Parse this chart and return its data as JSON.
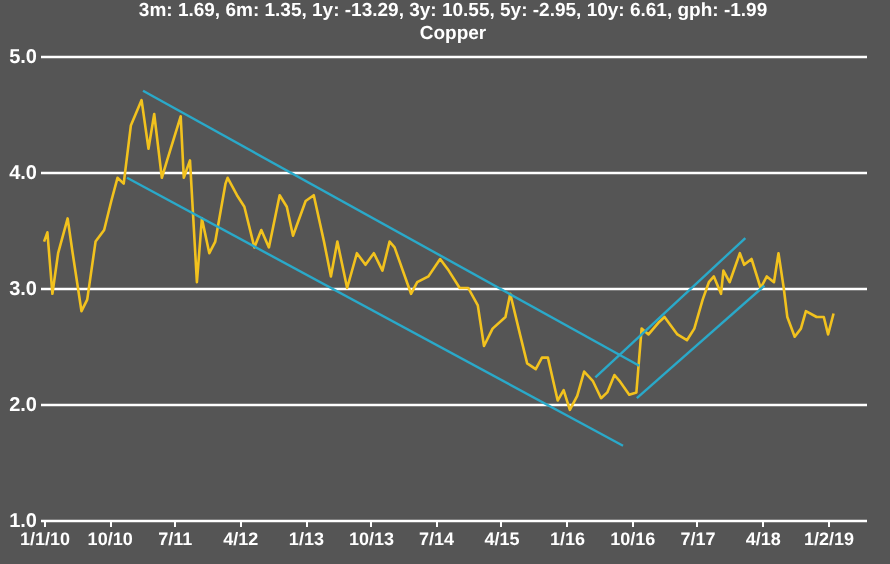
{
  "chart_data": {
    "type": "line",
    "title": "Copper",
    "annotations": [
      "3m: 1.69, 6m: 1.35, 1y: -13.29, 3y: 10.55, 5y: -2.95, 10y: 6.61, gph: -1.99"
    ],
    "x": [
      "2010-01-01",
      "2010-01-15",
      "2010-02-05",
      "2010-03-01",
      "2010-04-10",
      "2010-05-01",
      "2010-06-07",
      "2010-07-01",
      "2010-08-05",
      "2010-09-10",
      "2010-10-10",
      "2010-11-05",
      "2010-12-01",
      "2010-12-31",
      "2011-02-14",
      "2011-03-15",
      "2011-04-08",
      "2011-05-10",
      "2011-06-01",
      "2011-07-28",
      "2011-08-10",
      "2011-09-05",
      "2011-10-04",
      "2011-10-25",
      "2011-11-25",
      "2011-12-20",
      "2012-02-01",
      "2012-02-10",
      "2012-03-20",
      "2012-04-20",
      "2012-06-01",
      "2012-06-30",
      "2012-08-01",
      "2012-09-15",
      "2012-10-15",
      "2012-11-10",
      "2013-01-02",
      "2013-02-05",
      "2013-03-20",
      "2013-04-18",
      "2013-05-15",
      "2013-06-25",
      "2013-08-05",
      "2013-09-10",
      "2013-10-15",
      "2013-11-20",
      "2013-12-20",
      "2014-01-10",
      "2014-03-20",
      "2014-04-15",
      "2014-06-01",
      "2014-07-20",
      "2014-08-25",
      "2014-10-10",
      "2014-11-15",
      "2014-12-25",
      "2015-01-20",
      "2015-02-25",
      "2015-04-20",
      "2015-05-10",
      "2015-06-20",
      "2015-07-20",
      "2015-08-25",
      "2015-09-20",
      "2015-10-15",
      "2015-11-25",
      "2015-12-20",
      "2016-01-15",
      "2016-02-15",
      "2016-03-15",
      "2016-04-20",
      "2016-05-25",
      "2016-06-20",
      "2016-07-20",
      "2016-08-10",
      "2016-09-20",
      "2016-10-20",
      "2016-11-11",
      "2016-12-10",
      "2017-01-20",
      "2017-02-15",
      "2017-04-10",
      "2017-05-20",
      "2017-06-20",
      "2017-07-25",
      "2017-08-20",
      "2017-09-10",
      "2017-10-10",
      "2017-10-20",
      "2017-11-15",
      "2017-12-28",
      "2018-01-15",
      "2018-02-15",
      "2018-03-25",
      "2018-04-20",
      "2018-05-20",
      "2018-06-08",
      "2018-06-30",
      "2018-07-15",
      "2018-08-15",
      "2018-09-10",
      "2018-10-01",
      "2018-11-15",
      "2018-12-15",
      "2019-01-02",
      "2019-01-25"
    ],
    "series": [
      {
        "color": "#f2c21e",
        "values": [
          3.4,
          3.48,
          2.95,
          3.3,
          3.6,
          3.3,
          2.8,
          2.9,
          3.4,
          3.5,
          3.75,
          3.95,
          3.9,
          4.4,
          4.62,
          4.2,
          4.5,
          3.95,
          4.1,
          4.48,
          3.95,
          4.1,
          3.05,
          3.6,
          3.3,
          3.4,
          3.9,
          3.95,
          3.8,
          3.7,
          3.35,
          3.5,
          3.35,
          3.8,
          3.7,
          3.45,
          3.75,
          3.8,
          3.4,
          3.1,
          3.4,
          3.0,
          3.3,
          3.2,
          3.3,
          3.15,
          3.4,
          3.35,
          2.95,
          3.05,
          3.1,
          3.25,
          3.15,
          3.0,
          3.0,
          2.85,
          2.5,
          2.65,
          2.75,
          2.95,
          2.6,
          2.35,
          2.3,
          2.4,
          2.4,
          2.03,
          2.12,
          1.95,
          2.07,
          2.28,
          2.2,
          2.05,
          2.1,
          2.25,
          2.2,
          2.08,
          2.1,
          2.65,
          2.6,
          2.7,
          2.75,
          2.6,
          2.55,
          2.65,
          2.9,
          3.05,
          3.1,
          2.95,
          3.15,
          3.05,
          3.3,
          3.2,
          3.25,
          3.0,
          3.1,
          3.05,
          3.3,
          3.0,
          2.75,
          2.58,
          2.65,
          2.8,
          2.75,
          2.75,
          2.6,
          2.78
        ]
      },
      {
        "type": "line",
        "color": "#2aa9c9",
        "x": [
          "2011-02-20",
          "2016-11-01"
        ],
        "values": [
          4.7,
          2.33
        ]
      },
      {
        "type": "line",
        "color": "#2aa9c9",
        "x": [
          "2010-12-15",
          "2016-08-25"
        ],
        "values": [
          3.95,
          1.64
        ]
      },
      {
        "type": "line",
        "color": "#2aa9c9",
        "x": [
          "2016-10-22",
          "2018-04-10"
        ],
        "values": [
          2.05,
          3.02
        ]
      },
      {
        "type": "line",
        "color": "#2aa9c9",
        "x": [
          "2016-05-01",
          "2018-01-20"
        ],
        "values": [
          2.23,
          3.43
        ]
      }
    ],
    "xlim": [
      "2009-12-15",
      "2019-06-10"
    ],
    "xticks": [
      {
        "value": "2010-01-01",
        "label": "1/1/10"
      },
      {
        "value": "2010-10-01",
        "label": "10/10"
      },
      {
        "value": "2011-07-01",
        "label": "7/11"
      },
      {
        "value": "2012-04-01",
        "label": "4/12"
      },
      {
        "value": "2013-01-01",
        "label": "1/13"
      },
      {
        "value": "2013-10-01",
        "label": "10/13"
      },
      {
        "value": "2014-07-01",
        "label": "7/14"
      },
      {
        "value": "2015-04-01",
        "label": "4/15"
      },
      {
        "value": "2016-01-01",
        "label": "1/16"
      },
      {
        "value": "2016-10-01",
        "label": "10/16"
      },
      {
        "value": "2017-07-01",
        "label": "7/17"
      },
      {
        "value": "2018-04-01",
        "label": "4/18"
      },
      {
        "value": "2019-01-02",
        "label": "1/2/19"
      }
    ],
    "ylim": [
      1,
      5
    ],
    "yticks": [
      {
        "value": 1,
        "label": "1.0"
      },
      {
        "value": 2,
        "label": "2.0"
      },
      {
        "value": 3,
        "label": "3.0"
      },
      {
        "value": 4,
        "label": "4.0"
      },
      {
        "value": 5,
        "label": "5.0"
      }
    ],
    "grid": "y"
  }
}
